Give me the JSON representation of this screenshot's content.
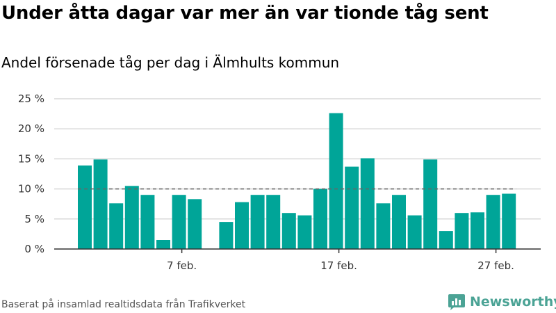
{
  "title": "Under åtta dagar var mer än var tionde tåg sent",
  "subtitle": "Andel försenade tåg per dag i Älmhults kommun",
  "source": "Baserat på insamlad realtidsdata från Trafikverket",
  "brand": {
    "name": "Newsworthy",
    "color": "#4ba395"
  },
  "colors": {
    "bar": "#00a598",
    "threshold": "#666666",
    "grid": "#d9d9d9",
    "axis": "#333333"
  },
  "chart_data": {
    "type": "bar",
    "x": [
      "2024-02-01",
      "2024-02-02",
      "2024-02-03",
      "2024-02-04",
      "2024-02-05",
      "2024-02-06",
      "2024-02-07",
      "2024-02-08",
      "2024-02-09",
      "2024-02-10",
      "2024-02-11",
      "2024-02-12",
      "2024-02-13",
      "2024-02-14",
      "2024-02-15",
      "2024-02-16",
      "2024-02-17",
      "2024-02-18",
      "2024-02-19",
      "2024-02-20",
      "2024-02-21",
      "2024-02-22",
      "2024-02-23",
      "2024-02-24",
      "2024-02-25",
      "2024-02-26",
      "2024-02-27",
      "2024-02-28"
    ],
    "values": [
      13.9,
      14.9,
      7.6,
      10.5,
      9.0,
      1.5,
      9.0,
      8.3,
      null,
      4.5,
      7.8,
      9.0,
      9.0,
      6.0,
      5.6,
      10.0,
      22.6,
      13.7,
      15.1,
      7.6,
      9.0,
      5.6,
      14.9,
      3.0,
      6.0,
      6.1,
      9.0,
      9.2
    ],
    "xticks": [
      {
        "date": "2024-02-07",
        "label": "7 feb."
      },
      {
        "date": "2024-02-17",
        "label": "17 feb."
      },
      {
        "date": "2024-02-27",
        "label": "27 feb."
      }
    ],
    "yticks": [
      0,
      5,
      10,
      15,
      20,
      25
    ],
    "ytick_labels": [
      "0 %",
      "5 %",
      "10 %",
      "15 %",
      "20 %",
      "25 %"
    ],
    "ylim": [
      0,
      25
    ],
    "threshold": 10,
    "grid": true
  }
}
